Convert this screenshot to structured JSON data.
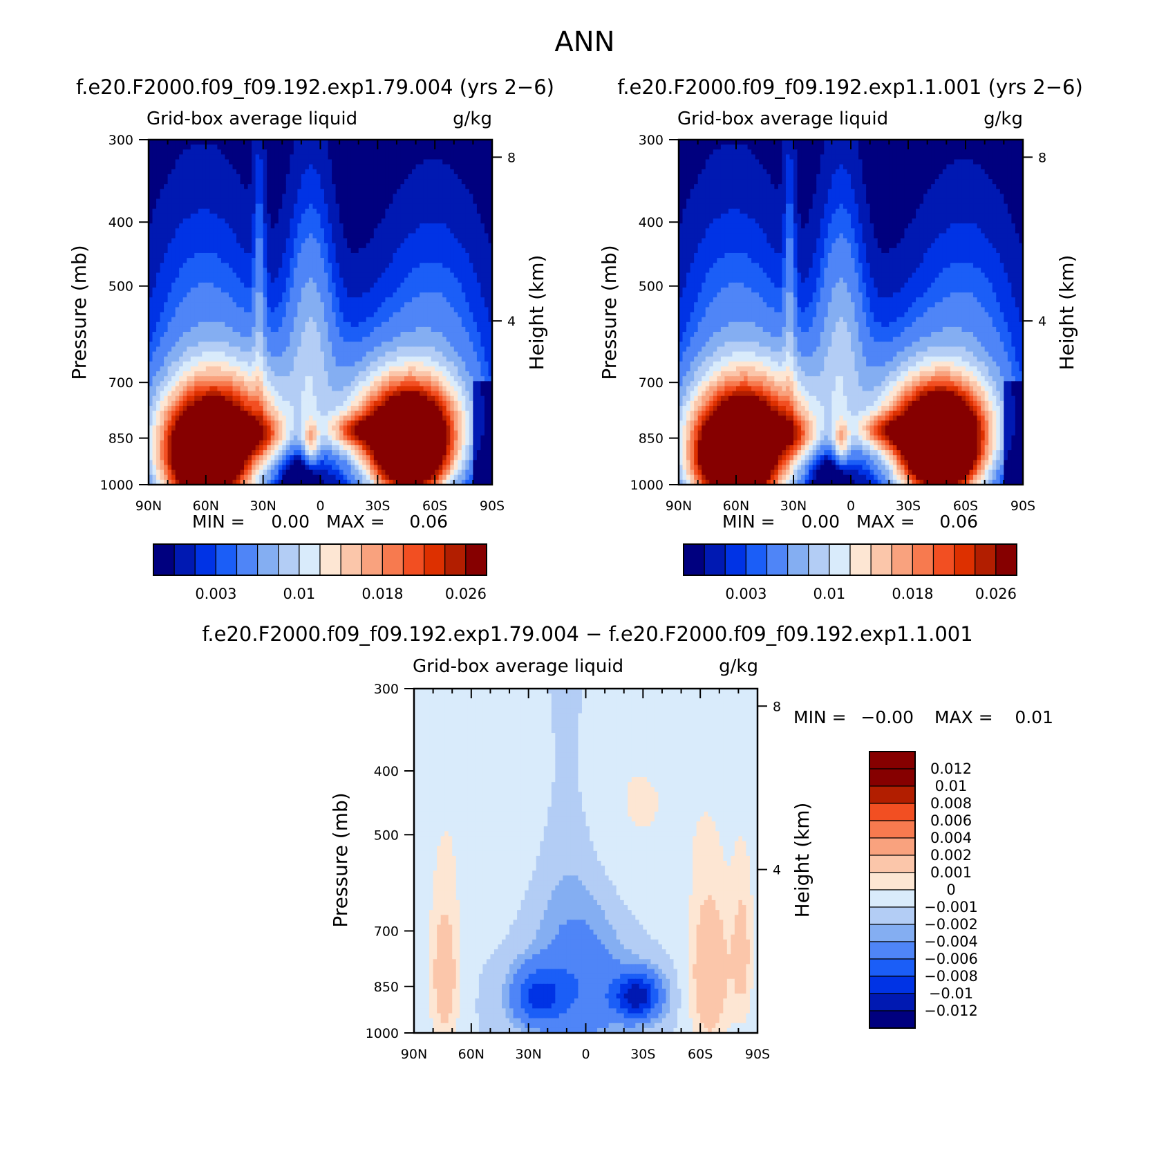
{
  "figure": {
    "title": "ANN",
    "field_label": "Grid-box average liquid",
    "units": "g/kg",
    "pressure_axis_label": "Pressure (mb)",
    "height_axis_label": "Height (km)"
  },
  "chart_data": [
    {
      "id": "test",
      "type": "heatmap",
      "title": "f.e20.F2000.f09_f09.192.exp1.79.004 (yrs 2−6)",
      "subtitle_left": "Grid-box average liquid",
      "subtitle_right": "g/kg",
      "ylabel": "Pressure (mb)",
      "ylabel_right": "Height (km)",
      "x_ticks": [
        "90N",
        "60N",
        "30N",
        "0",
        "30S",
        "60S",
        "90S"
      ],
      "x_range": [
        90,
        -90
      ],
      "y_ticks": [
        "300",
        "400",
        "500",
        "700",
        "850",
        "1000"
      ],
      "y_range": [
        300,
        1000
      ],
      "y_scale": "log",
      "right_ticks": [
        "8",
        "4"
      ],
      "min_label": "MIN =",
      "min_value": "0.00",
      "max_label": "MAX =",
      "max_value": "0.06",
      "colorbar_labels": [
        "0.003",
        "0.01",
        "0.018",
        "0.026"
      ],
      "colorbar_colors": [
        "#00007f",
        "#0019b2",
        "#0033e5",
        "#1b5ef7",
        "#4f85f7",
        "#84aef2",
        "#b3cdf5",
        "#d9ebfb",
        "#fde6d3",
        "#fbc6aa",
        "#f9a27e",
        "#f77a4f",
        "#f24f22",
        "#dd3000",
        "#b21e00",
        "#860000"
      ],
      "contour_levels": [
        0.001,
        0.002,
        0.003,
        0.004,
        0.006,
        0.008,
        0.01,
        0.012,
        0.014,
        0.016,
        0.018,
        0.02,
        0.022,
        0.024,
        0.026
      ]
    },
    {
      "id": "control",
      "type": "heatmap",
      "title": "f.e20.F2000.f09_f09.192.exp1.1.001 (yrs 2−6)",
      "subtitle_left": "Grid-box average liquid",
      "subtitle_right": "g/kg",
      "ylabel": "Pressure (mb)",
      "ylabel_right": "Height (km)",
      "x_ticks": [
        "90N",
        "60N",
        "30N",
        "0",
        "30S",
        "60S",
        "90S"
      ],
      "x_range": [
        90,
        -90
      ],
      "y_ticks": [
        "300",
        "400",
        "500",
        "700",
        "850",
        "1000"
      ],
      "y_range": [
        300,
        1000
      ],
      "y_scale": "log",
      "right_ticks": [
        "8",
        "4"
      ],
      "min_label": "MIN =",
      "min_value": "0.00",
      "max_label": "MAX =",
      "max_value": "0.06",
      "colorbar_labels": [
        "0.003",
        "0.01",
        "0.018",
        "0.026"
      ],
      "colorbar_colors": [
        "#00007f",
        "#0019b2",
        "#0033e5",
        "#1b5ef7",
        "#4f85f7",
        "#84aef2",
        "#b3cdf5",
        "#d9ebfb",
        "#fde6d3",
        "#fbc6aa",
        "#f9a27e",
        "#f77a4f",
        "#f24f22",
        "#dd3000",
        "#b21e00",
        "#860000"
      ],
      "contour_levels": [
        0.001,
        0.002,
        0.003,
        0.004,
        0.006,
        0.008,
        0.01,
        0.012,
        0.014,
        0.016,
        0.018,
        0.02,
        0.022,
        0.024,
        0.026
      ]
    },
    {
      "id": "difference",
      "type": "heatmap",
      "title": "f.e20.F2000.f09_f09.192.exp1.79.004 − f.e20.F2000.f09_f09.192.exp1.1.001",
      "subtitle_left": "Grid-box average liquid",
      "subtitle_right": "g/kg",
      "ylabel": "Pressure (mb)",
      "ylabel_right": "Height (km)",
      "x_ticks": [
        "90N",
        "60N",
        "30N",
        "0",
        "30S",
        "60S",
        "90S"
      ],
      "x_range": [
        90,
        -90
      ],
      "y_ticks": [
        "300",
        "400",
        "500",
        "700",
        "850",
        "1000"
      ],
      "y_range": [
        300,
        1000
      ],
      "y_scale": "log",
      "right_ticks": [
        "8",
        "4"
      ],
      "min_label": "MIN =",
      "min_value": "−0.00",
      "max_label": "MAX =",
      "max_value": "0.01",
      "colorbar_labels": [
        "0.012",
        "0.01",
        "0.008",
        "0.006",
        "0.004",
        "0.002",
        "0.001",
        "0",
        "−0.001",
        "−0.002",
        "−0.004",
        "−0.006",
        "−0.008",
        "−0.01",
        "−0.012"
      ],
      "colorbar_colors": [
        "#860000",
        "#b21e00",
        "#f24f22",
        "#f77a4f",
        "#f9a27e",
        "#fbc6aa",
        "#fde6d3",
        "#d9ebfb",
        "#b3cdf5",
        "#84aef2",
        "#4f85f7",
        "#1b5ef7",
        "#0033e5",
        "#0019b2",
        "#00007f"
      ],
      "contour_levels": [
        -0.012,
        -0.01,
        -0.008,
        -0.006,
        -0.004,
        -0.002,
        -0.001,
        0,
        0.001,
        0.002,
        0.004,
        0.006,
        0.008,
        0.01,
        0.012
      ]
    }
  ]
}
